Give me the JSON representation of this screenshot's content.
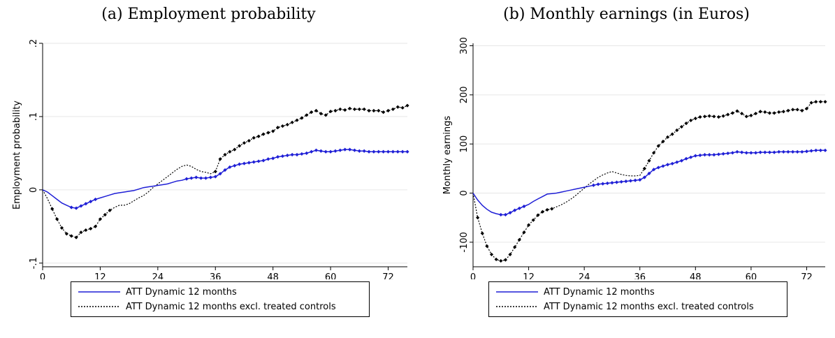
{
  "panels": [
    {
      "id": "a",
      "title": "(a) Employment probability"
    },
    {
      "id": "b",
      "title": "(b) Monthly earnings (in Euros)"
    }
  ],
  "colors": {
    "series1": "#1f1fd6",
    "series2": "#000000",
    "grid": "#e6e6e6"
  },
  "chart_data": [
    {
      "type": "line",
      "title": "(a) Employment probability",
      "xlabel": "",
      "ylabel": "Employment probability",
      "xlim": [
        0,
        76
      ],
      "ylim": [
        -0.105,
        0.2
      ],
      "xticks": [
        0,
        12,
        24,
        36,
        48,
        60,
        72
      ],
      "xtick_labels": [
        "0",
        "12",
        "24",
        "36",
        "48",
        "60",
        "72"
      ],
      "yticks": [
        -0.1,
        0,
        0.1,
        0.2
      ],
      "ytick_labels": [
        "-.1",
        "0",
        ".1",
        ".2"
      ],
      "grid": true,
      "legend_position": "bottom",
      "series": [
        {
          "name": "ATT Dynamic 12 months",
          "style": "solid",
          "marker_from_month": 6,
          "marker_segments": [
            [
              6,
              11
            ],
            [
              30,
              76
            ]
          ],
          "x": [
            0,
            1,
            2,
            3,
            4,
            5,
            6,
            7,
            8,
            9,
            10,
            11,
            12,
            13,
            14,
            15,
            16,
            17,
            18,
            19,
            20,
            21,
            22,
            23,
            24,
            25,
            26,
            27,
            28,
            29,
            30,
            31,
            32,
            33,
            34,
            35,
            36,
            37,
            38,
            39,
            40,
            41,
            42,
            43,
            44,
            45,
            46,
            47,
            48,
            49,
            50,
            51,
            52,
            53,
            54,
            55,
            56,
            57,
            58,
            59,
            60,
            61,
            62,
            63,
            64,
            65,
            66,
            67,
            68,
            69,
            70,
            71,
            72,
            73,
            74,
            75,
            76
          ],
          "y": [
            0,
            -0.003,
            -0.008,
            -0.013,
            -0.018,
            -0.021,
            -0.024,
            -0.025,
            -0.022,
            -0.019,
            -0.016,
            -0.013,
            -0.011,
            -0.009,
            -0.007,
            -0.005,
            -0.004,
            -0.003,
            -0.002,
            -0.001,
            0.001,
            0.003,
            0.004,
            0.005,
            0.006,
            0.007,
            0.008,
            0.01,
            0.012,
            0.013,
            0.015,
            0.016,
            0.017,
            0.016,
            0.016,
            0.017,
            0.018,
            0.022,
            0.027,
            0.031,
            0.033,
            0.035,
            0.036,
            0.037,
            0.038,
            0.039,
            0.04,
            0.042,
            0.043,
            0.045,
            0.046,
            0.047,
            0.048,
            0.048,
            0.049,
            0.05,
            0.052,
            0.054,
            0.053,
            0.052,
            0.052,
            0.053,
            0.054,
            0.055,
            0.055,
            0.054,
            0.053,
            0.053,
            0.052,
            0.052,
            0.052,
            0.052,
            0.052,
            0.052,
            0.052,
            0.052,
            0.052
          ]
        },
        {
          "name": "ATT Dynamic 12 months excl. treated controls",
          "style": "dotted",
          "marker_segments": [
            [
              2,
              14
            ],
            [
              36,
              76
            ]
          ],
          "x": [
            0,
            1,
            2,
            3,
            4,
            5,
            6,
            7,
            8,
            9,
            10,
            11,
            12,
            13,
            14,
            15,
            16,
            17,
            18,
            19,
            20,
            21,
            22,
            23,
            24,
            25,
            26,
            27,
            28,
            29,
            30,
            31,
            32,
            33,
            34,
            35,
            36,
            37,
            38,
            39,
            40,
            41,
            42,
            43,
            44,
            45,
            46,
            47,
            48,
            49,
            50,
            51,
            52,
            53,
            54,
            55,
            56,
            57,
            58,
            59,
            60,
            61,
            62,
            63,
            64,
            65,
            66,
            67,
            68,
            69,
            70,
            71,
            72,
            73,
            74,
            75,
            76
          ],
          "y": [
            0,
            -0.012,
            -0.026,
            -0.04,
            -0.052,
            -0.06,
            -0.063,
            -0.065,
            -0.058,
            -0.055,
            -0.053,
            -0.05,
            -0.04,
            -0.034,
            -0.028,
            -0.024,
            -0.021,
            -0.021,
            -0.019,
            -0.015,
            -0.011,
            -0.008,
            -0.003,
            0.003,
            0.008,
            0.013,
            0.018,
            0.023,
            0.028,
            0.032,
            0.034,
            0.032,
            0.028,
            0.025,
            0.024,
            0.022,
            0.025,
            0.042,
            0.048,
            0.052,
            0.055,
            0.06,
            0.064,
            0.067,
            0.071,
            0.073,
            0.076,
            0.078,
            0.08,
            0.085,
            0.087,
            0.089,
            0.092,
            0.095,
            0.098,
            0.102,
            0.106,
            0.108,
            0.104,
            0.102,
            0.107,
            0.108,
            0.11,
            0.109,
            0.111,
            0.11,
            0.11,
            0.11,
            0.108,
            0.108,
            0.108,
            0.106,
            0.108,
            0.11,
            0.113,
            0.112,
            0.115
          ]
        }
      ]
    },
    {
      "type": "line",
      "title": "(b) Monthly earnings (in Euros)",
      "xlabel": "",
      "ylabel": "Monthly earnings",
      "xlim": [
        0,
        76
      ],
      "ylim": [
        -150,
        305
      ],
      "xticks": [
        0,
        12,
        24,
        36,
        48,
        60,
        72
      ],
      "xtick_labels": [
        "0",
        "12",
        "24",
        "36",
        "48",
        "60",
        "72"
      ],
      "yticks": [
        -100,
        0,
        100,
        200,
        300
      ],
      "ytick_labels": [
        "-100",
        "0",
        "100",
        "200",
        "300"
      ],
      "grid": true,
      "legend_position": "bottom",
      "series": [
        {
          "name": "ATT Dynamic 12 months",
          "style": "solid",
          "marker_segments": [
            [
              6,
              11
            ],
            [
              26,
              76
            ]
          ],
          "x": [
            0,
            1,
            2,
            3,
            4,
            5,
            6,
            7,
            8,
            9,
            10,
            11,
            12,
            13,
            14,
            15,
            16,
            17,
            18,
            19,
            20,
            21,
            22,
            23,
            24,
            25,
            26,
            27,
            28,
            29,
            30,
            31,
            32,
            33,
            34,
            35,
            36,
            37,
            38,
            39,
            40,
            41,
            42,
            43,
            44,
            45,
            46,
            47,
            48,
            49,
            50,
            51,
            52,
            53,
            54,
            55,
            56,
            57,
            58,
            59,
            60,
            61,
            62,
            63,
            64,
            65,
            66,
            67,
            68,
            69,
            70,
            71,
            72,
            73,
            74,
            75,
            76
          ],
          "y": [
            0,
            -14,
            -25,
            -33,
            -39,
            -42,
            -44,
            -44,
            -40,
            -35,
            -31,
            -27,
            -23,
            -17,
            -12,
            -7,
            -2,
            -1,
            0,
            2,
            4,
            6,
            8,
            10,
            12,
            14,
            16,
            18,
            19,
            20,
            21,
            22,
            23,
            24,
            25,
            26,
            27,
            32,
            40,
            48,
            52,
            55,
            58,
            60,
            63,
            66,
            70,
            73,
            76,
            77,
            78,
            78,
            78,
            79,
            80,
            81,
            82,
            84,
            83,
            82,
            82,
            82,
            83,
            83,
            83,
            83,
            84,
            84,
            84,
            84,
            84,
            84,
            85,
            86,
            87,
            87,
            87
          ]
        },
        {
          "name": "ATT Dynamic 12 months excl. treated controls",
          "style": "dotted",
          "marker_segments": [
            [
              1,
              17
            ],
            [
              37,
              76
            ]
          ],
          "x": [
            0,
            1,
            2,
            3,
            4,
            5,
            6,
            7,
            8,
            9,
            10,
            11,
            12,
            13,
            14,
            15,
            16,
            17,
            18,
            19,
            20,
            21,
            22,
            23,
            24,
            25,
            26,
            27,
            28,
            29,
            30,
            31,
            32,
            33,
            34,
            35,
            36,
            37,
            38,
            39,
            40,
            41,
            42,
            43,
            44,
            45,
            46,
            47,
            48,
            49,
            50,
            51,
            52,
            53,
            54,
            55,
            56,
            57,
            58,
            59,
            60,
            61,
            62,
            63,
            64,
            65,
            66,
            67,
            68,
            69,
            70,
            71,
            72,
            73,
            74,
            75,
            76
          ],
          "y": [
            0,
            -50,
            -82,
            -108,
            -125,
            -135,
            -138,
            -136,
            -125,
            -110,
            -95,
            -80,
            -65,
            -55,
            -45,
            -38,
            -34,
            -32,
            -28,
            -24,
            -19,
            -13,
            -6,
            2,
            10,
            18,
            25,
            32,
            37,
            41,
            44,
            41,
            38,
            36,
            35,
            35,
            36,
            50,
            66,
            82,
            96,
            105,
            114,
            120,
            128,
            135,
            142,
            148,
            152,
            155,
            156,
            157,
            156,
            155,
            157,
            160,
            163,
            167,
            162,
            156,
            158,
            162,
            166,
            165,
            163,
            163,
            165,
            166,
            168,
            170,
            170,
            168,
            172,
            184,
            186,
            186,
            186
          ]
        }
      ]
    }
  ]
}
